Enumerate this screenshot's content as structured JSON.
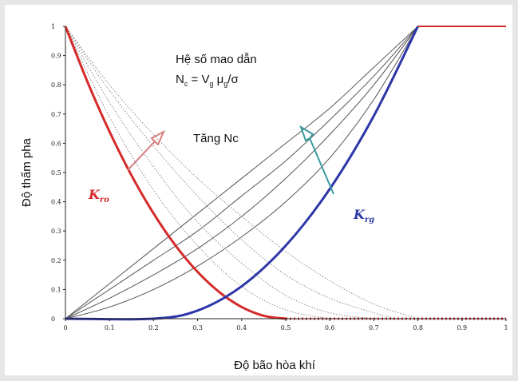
{
  "chart_data": {
    "type": "line",
    "title": "",
    "xlabel": "Độ bão hòa khí",
    "ylabel": "Độ thấm pha",
    "xlim": [
      0,
      1
    ],
    "ylim": [
      0,
      1
    ],
    "x_ticks": [
      "0",
      "0.1",
      "0.2",
      "0.3",
      "0.4",
      "0.5",
      "0.6",
      "0.7",
      "0.8",
      "0.9",
      "1"
    ],
    "y_ticks": [
      "0",
      "0.1",
      "0.2",
      "0.3",
      "0.4",
      "0.5",
      "0.6",
      "0.7",
      "0.8",
      "0.9",
      "1"
    ],
    "annotations": {
      "line1": "Hệ số mao dẫn",
      "formula": {
        "N": "N",
        "N_sub": "c",
        "eq": " = V",
        "V_sub": "g",
        "mu": " μ",
        "mu_sub": "g",
        "tail": "/σ"
      },
      "increase": "Tăng Nc"
    },
    "series": [
      {
        "name": "Kro",
        "label_main": "K",
        "label_sub": "ro",
        "color": "#d42a2a",
        "x": [
          0,
          0.05,
          0.1,
          0.15,
          0.2,
          0.25,
          0.3,
          0.35,
          0.4,
          0.45,
          0.5
        ],
        "y": [
          1.0,
          0.81,
          0.64,
          0.49,
          0.36,
          0.25,
          0.16,
          0.09,
          0.04,
          0.01,
          0.0
        ]
      },
      {
        "name": "Krg",
        "label_main": "K",
        "label_sub": "rg",
        "color": "#2d37a8",
        "x": [
          0,
          0.2,
          0.3,
          0.4,
          0.5,
          0.6,
          0.7,
          0.8
        ],
        "y": [
          0.0,
          0.0,
          0.028,
          0.111,
          0.25,
          0.444,
          0.694,
          1.0
        ]
      },
      {
        "name": "Krg (Nc 1)",
        "color": "#555555",
        "x": [
          0,
          0.1,
          0.2,
          0.3,
          0.4,
          0.5,
          0.6,
          0.7,
          0.8
        ],
        "y": [
          0.0,
          0.04,
          0.1,
          0.18,
          0.28,
          0.4,
          0.55,
          0.75,
          1.0
        ]
      },
      {
        "name": "Krg (Nc 2)",
        "color": "#555555",
        "x": [
          0,
          0.1,
          0.2,
          0.3,
          0.4,
          0.5,
          0.6,
          0.7,
          0.8
        ],
        "y": [
          0.0,
          0.07,
          0.15,
          0.24,
          0.35,
          0.48,
          0.63,
          0.8,
          1.0
        ]
      },
      {
        "name": "Krg (Nc 3)",
        "color": "#555555",
        "x": [
          0,
          0.1,
          0.2,
          0.3,
          0.4,
          0.5,
          0.6,
          0.7,
          0.8
        ],
        "y": [
          0.0,
          0.1,
          0.2,
          0.3,
          0.42,
          0.54,
          0.68,
          0.83,
          1.0
        ]
      },
      {
        "name": "Krg (Nc 4)",
        "color": "#555555",
        "x": [
          0,
          0.1,
          0.2,
          0.3,
          0.4,
          0.5,
          0.6,
          0.7,
          0.8
        ],
        "y": [
          0.0,
          0.12,
          0.24,
          0.36,
          0.48,
          0.6,
          0.72,
          0.86,
          1.0
        ]
      },
      {
        "name": "Kro (Nc 1)",
        "color": "#8a8a8a",
        "dashed": true,
        "x": [
          0,
          0.1,
          0.2,
          0.3,
          0.4,
          0.5,
          0.6
        ],
        "y": [
          1.0,
          0.69,
          0.44,
          0.25,
          0.11,
          0.03,
          0.0
        ]
      },
      {
        "name": "Kro (Nc 2)",
        "color": "#8a8a8a",
        "dashed": true,
        "x": [
          0,
          0.1,
          0.2,
          0.3,
          0.4,
          0.5,
          0.6,
          0.7
        ],
        "y": [
          1.0,
          0.74,
          0.52,
          0.33,
          0.19,
          0.08,
          0.02,
          0.0
        ]
      },
      {
        "name": "Kro (Nc 3)",
        "color": "#8a8a8a",
        "dashed": true,
        "x": [
          0,
          0.1,
          0.2,
          0.3,
          0.4,
          0.5,
          0.6,
          0.7,
          0.75
        ],
        "y": [
          1.0,
          0.78,
          0.59,
          0.42,
          0.27,
          0.15,
          0.07,
          0.02,
          0.0
        ]
      },
      {
        "name": "Kro (Nc 4)",
        "color": "#8a8a8a",
        "dashed": true,
        "x": [
          0,
          0.1,
          0.2,
          0.3,
          0.4,
          0.5,
          0.6,
          0.7,
          0.8
        ],
        "y": [
          1.0,
          0.8,
          0.63,
          0.48,
          0.35,
          0.23,
          0.13,
          0.05,
          0.0
        ]
      }
    ],
    "horizontal_line": {
      "y": 1,
      "x_from": 0.8,
      "x_to": 1,
      "color": "#d42a2a"
    },
    "grid": false
  }
}
